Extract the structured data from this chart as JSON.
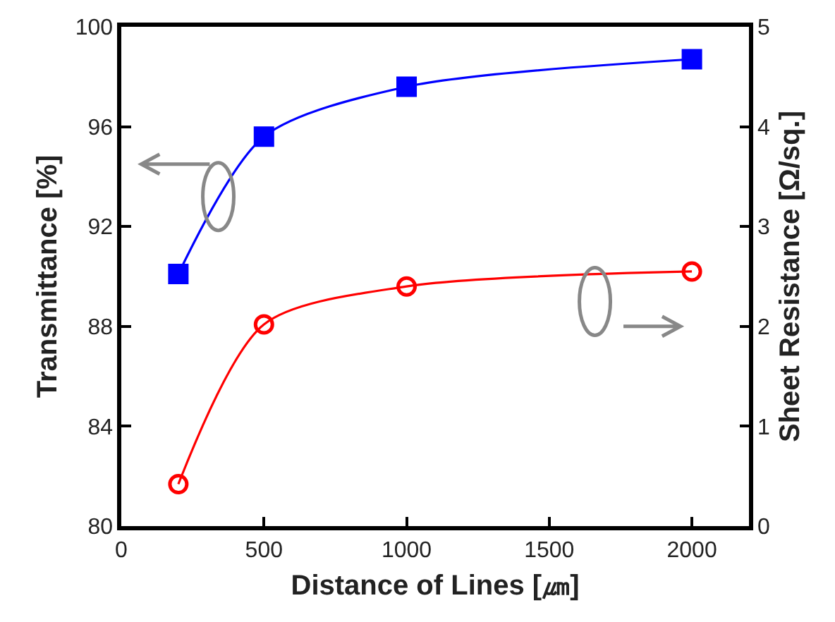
{
  "chart_data": {
    "type": "line",
    "xlabel": "Distance of Lines [㎛]",
    "ylabel": "Transmittance [%]",
    "y2label": "Sheet Resistance [Ω/sq.]",
    "x": [
      200,
      500,
      1000,
      2000
    ],
    "series": [
      {
        "color": "#0000ff",
        "values": [
          90.1,
          95.6,
          97.6,
          98.7
        ],
        "marker": "square"
      },
      {
        "color": "#ff0000",
        "values": [
          0.42,
          2.02,
          2.4,
          2.55
        ],
        "marker": "circle",
        "axis": "y2"
      }
    ],
    "xlim": [
      0,
      2200
    ],
    "xticks": [
      0,
      500,
      1000,
      1500,
      2000
    ],
    "ylim": [
      80,
      100
    ],
    "yticks": [
      80,
      84,
      88,
      92,
      96,
      100
    ],
    "y2lim": [
      0,
      5
    ],
    "y2ticks": [
      0,
      1,
      2,
      3,
      4,
      5
    ],
    "grid": false,
    "line_style": "solid"
  }
}
